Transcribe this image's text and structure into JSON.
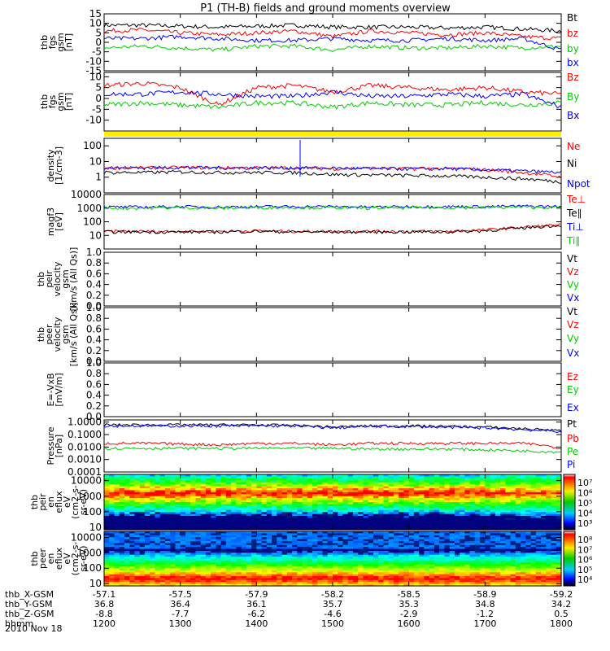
{
  "title": "P1 (TH-B) fields and ground moments overview",
  "date_label": "2010 Nov 18",
  "colors": {
    "black": "#000000",
    "red": "#ff0000",
    "green": "#00cc00",
    "blue": "#0000ff",
    "yellow": "#ffee00"
  },
  "x_axis": {
    "rows": [
      {
        "label": "thb_X-GSM",
        "values": [
          "-57.1",
          "-57.5",
          "-57.9",
          "-58.2",
          "-58.5",
          "-58.9",
          "-59.2"
        ]
      },
      {
        "label": "thb_Y-GSM",
        "values": [
          "36.8",
          "36.4",
          "36.1",
          "35.7",
          "35.3",
          "34.8",
          "34.2"
        ]
      },
      {
        "label": "thb_Z-GSM",
        "values": [
          "-8.8",
          "-7.7",
          "-6.2",
          "-4.6",
          "-2.9",
          "-1.2",
          "0.5"
        ]
      },
      {
        "label": "hhmm",
        "values": [
          "1200",
          "1300",
          "1400",
          "1500",
          "1600",
          "1700",
          "1800"
        ]
      }
    ]
  },
  "chart_data": [
    {
      "type": "line",
      "ylabel": [
        "thb",
        "fgs",
        "gsm",
        "[nT]"
      ],
      "ylim": [
        -15,
        15
      ],
      "ticks": [
        "15",
        "10",
        "5",
        "0",
        "-5",
        "-10",
        "-15"
      ],
      "x": [
        12.0,
        12.5,
        13.0,
        13.5,
        14.0,
        14.5,
        15.0,
        15.5,
        16.0,
        16.5,
        17.0,
        17.5,
        18.0
      ],
      "series": [
        {
          "name": "Bt",
          "color": "black",
          "values": [
            9,
            9,
            8.5,
            8,
            8.5,
            9,
            8,
            8,
            8,
            7.5,
            8,
            7,
            6
          ]
        },
        {
          "name": "bz",
          "color": "red",
          "values": [
            6,
            6.5,
            5,
            4,
            5,
            6,
            3,
            6,
            5,
            4,
            5,
            3,
            2
          ]
        },
        {
          "name": "by",
          "color": "green",
          "values": [
            -3,
            -2,
            -3,
            -4,
            -2,
            -2,
            -4,
            -2,
            -3,
            -3,
            -2,
            -3,
            -2
          ]
        },
        {
          "name": "bx",
          "color": "blue",
          "values": [
            2,
            2,
            3,
            2,
            1,
            1,
            2,
            1,
            1,
            2,
            1,
            2,
            -4
          ]
        }
      ]
    },
    {
      "type": "line",
      "ylabel": [
        "thb",
        "fgs",
        "gsm",
        "[nT]"
      ],
      "ylim": [
        -15,
        12
      ],
      "ticks": [
        "10",
        "5",
        "0",
        "-5",
        "-10"
      ],
      "x": [
        12.0,
        12.5,
        13.0,
        13.5,
        14.0,
        14.5,
        15.0,
        15.5,
        16.0,
        16.5,
        17.0,
        17.5,
        18.0
      ],
      "series": [
        {
          "name": "Bz",
          "color": "red",
          "values": [
            6,
            7,
            5,
            -3,
            5,
            6,
            3,
            6,
            5,
            4,
            5,
            3,
            2
          ]
        },
        {
          "name": "By",
          "color": "green",
          "values": [
            -3,
            -2,
            -3,
            -4,
            -2,
            -2,
            -4,
            -2,
            -3,
            -3,
            -2,
            -3,
            -2
          ]
        },
        {
          "name": "Bx",
          "color": "blue",
          "values": [
            2,
            2,
            3,
            2,
            1,
            1,
            3,
            1,
            1,
            2,
            1,
            2,
            -4
          ]
        }
      ]
    },
    {
      "type": "line",
      "scale": "log",
      "ylabel": [
        "density",
        "[1/cm-3]"
      ],
      "ylim": [
        0.1,
        300
      ],
      "ticks": [
        "100",
        "10",
        "1"
      ],
      "x": [
        12.0,
        12.5,
        13.0,
        13.5,
        14.0,
        14.5,
        15.0,
        15.5,
        16.0,
        16.5,
        17.0,
        17.5,
        18.0
      ],
      "series": [
        {
          "name": "Ne",
          "color": "red",
          "values": [
            4,
            4,
            4.2,
            4,
            4,
            4,
            3.5,
            3.8,
            3.5,
            3.5,
            3,
            2,
            1
          ]
        },
        {
          "name": "Ni",
          "color": "black",
          "values": [
            2,
            2,
            2.2,
            2,
            2,
            2,
            1.5,
            1.4,
            1.3,
            1.2,
            1,
            0.8,
            0.5
          ]
        },
        {
          "name": "Npot",
          "color": "blue",
          "values": [
            4,
            4,
            4.2,
            4,
            4,
            4,
            3.8,
            3.5,
            3.5,
            3.5,
            3,
            2.5,
            2
          ]
        }
      ]
    },
    {
      "type": "line",
      "scale": "log",
      "ylabel": [
        "magf3",
        "[eV]"
      ],
      "ylim": [
        1,
        10000
      ],
      "ticks": [
        "10000",
        "1000",
        "100",
        "10"
      ],
      "x": [
        12.0,
        12.5,
        13.0,
        13.5,
        14.0,
        14.5,
        15.0,
        15.5,
        16.0,
        16.5,
        17.0,
        17.5,
        18.0
      ],
      "series": [
        {
          "name": "Te⊥",
          "color": "red",
          "values": [
            20,
            20,
            20,
            20,
            22,
            20,
            20,
            20,
            20,
            20,
            25,
            40,
            60
          ]
        },
        {
          "name": "Te∥",
          "color": "black",
          "values": [
            18,
            18,
            18,
            18,
            20,
            18,
            18,
            18,
            18,
            18,
            22,
            35,
            55
          ]
        },
        {
          "name": "Ti⊥",
          "color": "blue",
          "values": [
            1200,
            1200,
            1300,
            1200,
            1300,
            1300,
            1300,
            1200,
            1300,
            1300,
            1300,
            1400,
            1300
          ]
        },
        {
          "name": "Ti∥",
          "color": "green",
          "values": [
            1000,
            1000,
            1100,
            1000,
            1100,
            1100,
            1100,
            1000,
            1100,
            1100,
            1100,
            1200,
            1100
          ]
        }
      ]
    },
    {
      "type": "line",
      "ylabel": [
        "thb",
        "peir",
        "velocity",
        "gsm",
        "[km/s (All Qs)]"
      ],
      "ylim": [
        0,
        1
      ],
      "ticks": [
        "1.0",
        "0.8",
        "0.6",
        "0.4",
        "0.2",
        "0.0"
      ],
      "series": [
        {
          "name": "Vt",
          "color": "black",
          "values": []
        },
        {
          "name": "Vz",
          "color": "red",
          "values": []
        },
        {
          "name": "Vy",
          "color": "green",
          "values": []
        },
        {
          "name": "Vx",
          "color": "blue",
          "values": []
        }
      ]
    },
    {
      "type": "line",
      "ylabel": [
        "thb",
        "peer",
        "velocity",
        "gsm",
        "[km/s (All Qs)]"
      ],
      "ylim": [
        0,
        1
      ],
      "ticks": [
        "1.0",
        "0.8",
        "0.6",
        "0.4",
        "0.2",
        "0.0"
      ],
      "series": [
        {
          "name": "Vt",
          "color": "black",
          "values": []
        },
        {
          "name": "Vz",
          "color": "red",
          "values": []
        },
        {
          "name": "Vy",
          "color": "green",
          "values": []
        },
        {
          "name": "Vx",
          "color": "blue",
          "values": []
        }
      ]
    },
    {
      "type": "line",
      "ylabel": [
        "E=-VxB",
        "[mV/m]"
      ],
      "ylim": [
        0,
        1
      ],
      "ticks": [
        "1.0",
        "0.8",
        "0.6",
        "0.4",
        "0.2",
        "0.0"
      ],
      "series": [
        {
          "name": "Ez",
          "color": "red",
          "values": []
        },
        {
          "name": "Ey",
          "color": "green",
          "values": []
        },
        {
          "name": "Ex",
          "color": "blue",
          "values": []
        }
      ]
    },
    {
      "type": "line",
      "scale": "log",
      "ylabel": [
        "Pressure",
        "[nPa]"
      ],
      "ylim": [
        0.0001,
        1.5
      ],
      "ticks": [
        "1.0000",
        "0.1000",
        "0.0100",
        "0.0010",
        "0.0001"
      ],
      "x": [
        12.0,
        12.5,
        13.0,
        13.5,
        14.0,
        14.5,
        15.0,
        15.5,
        16.0,
        16.5,
        17.0,
        17.5,
        18.0
      ],
      "series": [
        {
          "name": "Pt",
          "color": "black",
          "values": [
            0.6,
            0.6,
            0.6,
            0.6,
            0.6,
            0.55,
            0.4,
            0.5,
            0.5,
            0.45,
            0.4,
            0.3,
            0.2
          ]
        },
        {
          "name": "Pb",
          "color": "red",
          "values": [
            0.02,
            0.02,
            0.018,
            0.015,
            0.02,
            0.02,
            0.015,
            0.02,
            0.02,
            0.02,
            0.02,
            0.02,
            0.008
          ]
        },
        {
          "name": "Pe",
          "color": "green",
          "values": [
            0.008,
            0.008,
            0.008,
            0.008,
            0.008,
            0.008,
            0.008,
            0.007,
            0.007,
            0.007,
            0.006,
            0.005,
            0.004
          ]
        },
        {
          "name": "Pi",
          "color": "blue",
          "values": [
            0.5,
            0.5,
            0.5,
            0.5,
            0.5,
            0.5,
            0.35,
            0.45,
            0.45,
            0.4,
            0.35,
            0.25,
            0.18
          ]
        }
      ]
    },
    {
      "type": "heatmap",
      "scale": "log",
      "ylabel": [
        "thb",
        "peir",
        "en",
        "eflux",
        "eV",
        "(cm2-s-",
        "sr-eV)"
      ],
      "ylim": [
        7,
        25000
      ],
      "ticks": [
        "10000",
        "1000",
        "100",
        "10"
      ],
      "colorbar": {
        "ticks": [
          "10⁷",
          "10⁶",
          "10⁵",
          "10⁴",
          "10³"
        ]
      }
    },
    {
      "type": "heatmap",
      "scale": "log",
      "ylabel": [
        "thb",
        "peer",
        "en",
        "eflux",
        "eV",
        "(cm2-s-",
        "sr-eV)"
      ],
      "ylim": [
        7,
        25000
      ],
      "ticks": [
        "10000",
        "1000",
        "100",
        "10"
      ],
      "colorbar": {
        "ticks": [
          "10⁸",
          "10⁷",
          "10⁶",
          "10⁵",
          "10⁴"
        ]
      }
    }
  ]
}
